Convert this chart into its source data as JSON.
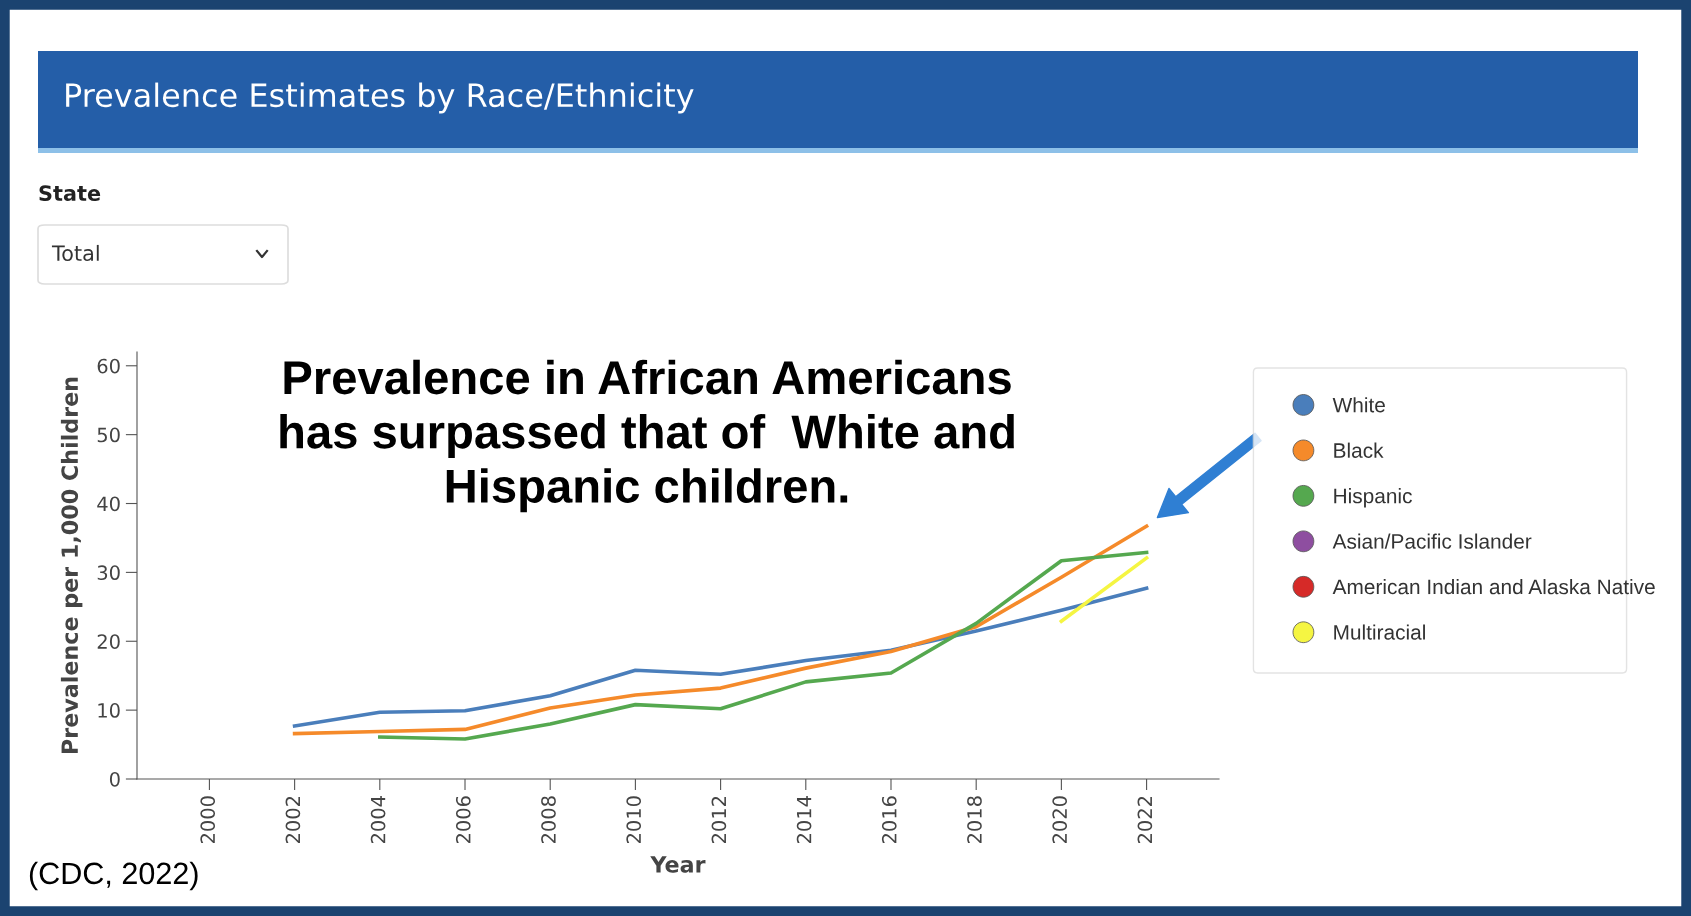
{
  "chart_data": {
    "type": "line",
    "title": "Prevalence Estimates by Race/Ethnicity",
    "xlabel": "Year",
    "ylabel": "Prevalence per 1,000 Children",
    "x": [
      2002,
      2004,
      2006,
      2008,
      2010,
      2012,
      2014,
      2016,
      2018,
      2020,
      2022
    ],
    "series": [
      {
        "name": "White",
        "color": "#4a7ebb",
        "values": [
          7.7,
          9.7,
          9.9,
          12.1,
          15.8,
          15.2,
          17.2,
          18.7,
          21.5,
          24.5,
          27.7
        ]
      },
      {
        "name": "Black",
        "color": "#f58a2a",
        "values": [
          6.6,
          6.9,
          7.2,
          10.3,
          12.2,
          13.2,
          16.1,
          18.5,
          22.1,
          29.3,
          36.7
        ]
      },
      {
        "name": "Hispanic",
        "color": "#55a84f",
        "values": [
          null,
          6.1,
          5.8,
          8.0,
          10.8,
          10.2,
          14.1,
          15.4,
          22.6,
          31.7,
          32.9
        ]
      },
      {
        "name": "Asian/Pacific Islander",
        "color": "#8e4ea0",
        "values": [
          null,
          null,
          null,
          null,
          null,
          null,
          null,
          null,
          null,
          null,
          null
        ]
      },
      {
        "name": "American Indian and Alaska Native",
        "color": "#d62a28",
        "values": [
          null,
          null,
          null,
          null,
          null,
          null,
          null,
          null,
          null,
          null,
          null
        ]
      },
      {
        "name": "Multiracial",
        "color": "#f5f542",
        "values": [
          null,
          null,
          null,
          null,
          null,
          null,
          null,
          null,
          null,
          22.9,
          32.1
        ]
      }
    ],
    "xlim": [
      1998.3,
      2023.7
    ],
    "xticks": [
      2000,
      2002,
      2004,
      2006,
      2008,
      2010,
      2012,
      2014,
      2016,
      2018,
      2020,
      2022
    ],
    "ylim": [
      0,
      62
    ],
    "yticks": [
      0,
      10,
      20,
      30,
      40,
      50,
      60
    ],
    "grid": false,
    "legend": "right",
    "marker": "none",
    "line_style": "solid",
    "annotations": [
      "State",
      "Total",
      {
        "text": "Prevalence in African Americans\nhas surpassed that of  White and\nHispanic children.",
        "x": 2022,
        "y": 36.7
      },
      "(CDC, 2022)"
    ]
  }
}
